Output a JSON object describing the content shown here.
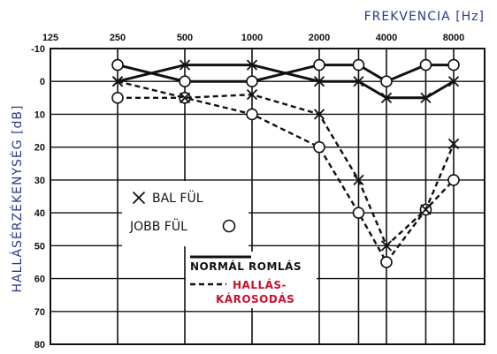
{
  "chart_data": {
    "type": "line",
    "title": "FREKVENCIA [Hz]",
    "ylabel": "HALLÁSÉRZÉKENYSÉG [dB]",
    "x_tick_labels": [
      "125",
      "250",
      "500",
      "1000",
      "2000",
      "4000",
      "8000"
    ],
    "y_tick_labels": [
      "-10",
      "0",
      "10",
      "20",
      "30",
      "40",
      "50",
      "60",
      "70",
      "80"
    ],
    "x_scale": "log",
    "x": [
      250,
      500,
      1000,
      2000,
      3000,
      4000,
      6000,
      8000
    ],
    "ylim": [
      -10,
      80
    ],
    "y_inverted": true,
    "grid": true,
    "series": [
      {
        "name": "BAL FÜL",
        "marker": "x",
        "line": "solid",
        "values": [
          0,
          -5,
          -5,
          0,
          0,
          5,
          5,
          0
        ]
      },
      {
        "name": "JOBB FÜL",
        "marker": "o",
        "line": "solid",
        "values": [
          -5,
          0,
          0,
          -5,
          -5,
          0,
          -5,
          -5
        ]
      },
      {
        "name": "BAL FÜL",
        "marker": "x",
        "line": "dashed",
        "values": [
          0,
          5,
          4,
          10,
          30,
          50,
          39,
          19
        ]
      },
      {
        "name": "JOBB FÜL",
        "marker": "o",
        "line": "dashed",
        "values": [
          5,
          5,
          10,
          20,
          40,
          55,
          39,
          30
        ]
      }
    ],
    "legend": {
      "markers": [
        "BAL FÜL",
        "JOBB FÜL"
      ],
      "lines": [
        {
          "style": "solid",
          "label_lines": [
            "NORMÁL ROMLÁS"
          ]
        },
        {
          "style": "dashed",
          "label_lines": [
            "HALLÁS-",
            "KÁROSODÁS"
          ]
        }
      ],
      "placement": "left-center"
    }
  },
  "colors": {
    "axis_title": "#2a3a8c",
    "ink": "#111111",
    "damage_label": "#c8102e"
  }
}
